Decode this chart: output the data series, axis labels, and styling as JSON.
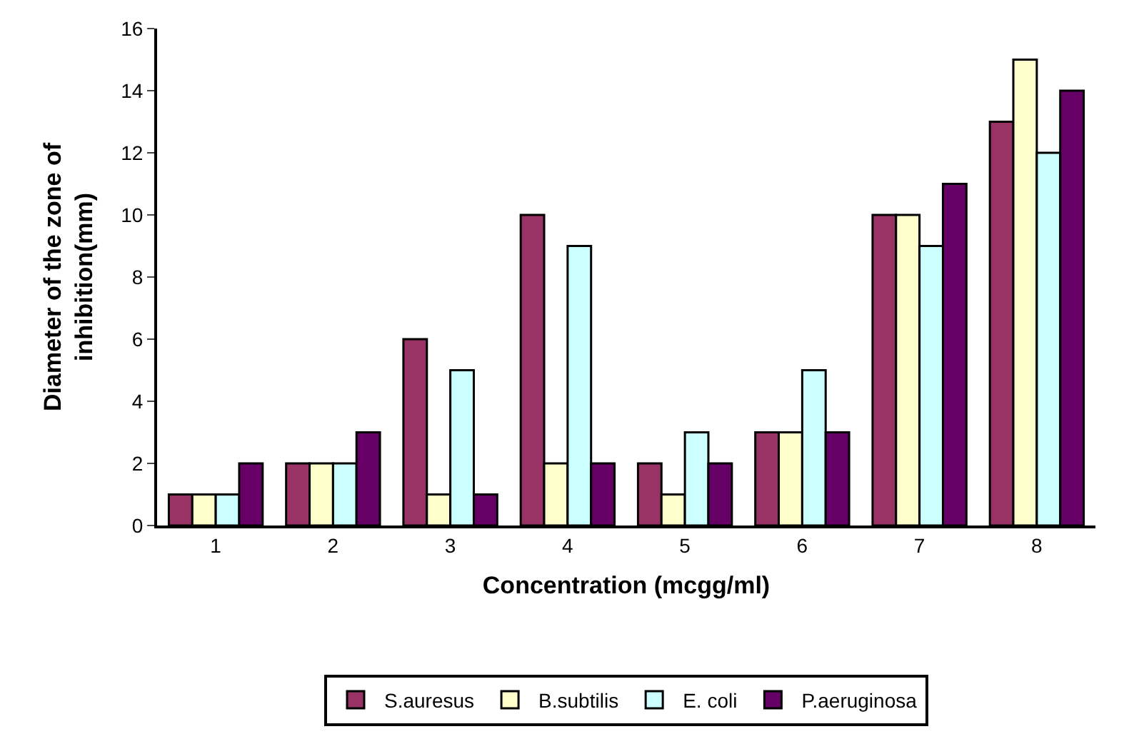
{
  "chart_data": {
    "type": "bar",
    "xlabel": "Concentration (mcgg/ml)",
    "ylabel": "Diameter of the zone of\ninhibition(mm)",
    "categories": [
      "1",
      "2",
      "3",
      "4",
      "5",
      "6",
      "7",
      "8"
    ],
    "series": [
      {
        "name": "S.auresus",
        "color": "#993366",
        "values": [
          1,
          2,
          6,
          10,
          2,
          3,
          10,
          13
        ]
      },
      {
        "name": "B.subtilis",
        "color": "#ffffcc",
        "values": [
          1,
          2,
          1,
          2,
          1,
          3,
          10,
          15
        ]
      },
      {
        "name": "E. coli",
        "color": "#ccffff",
        "values": [
          1,
          2,
          5,
          9,
          3,
          5,
          9,
          12
        ]
      },
      {
        "name": "P.aeruginosa",
        "color": "#660066",
        "values": [
          2,
          3,
          1,
          2,
          2,
          3,
          11,
          14
        ]
      }
    ],
    "ylim": [
      0,
      16
    ],
    "yticks": [
      0,
      2,
      4,
      6,
      8,
      10,
      12,
      14,
      16
    ],
    "legend": "bottom"
  }
}
